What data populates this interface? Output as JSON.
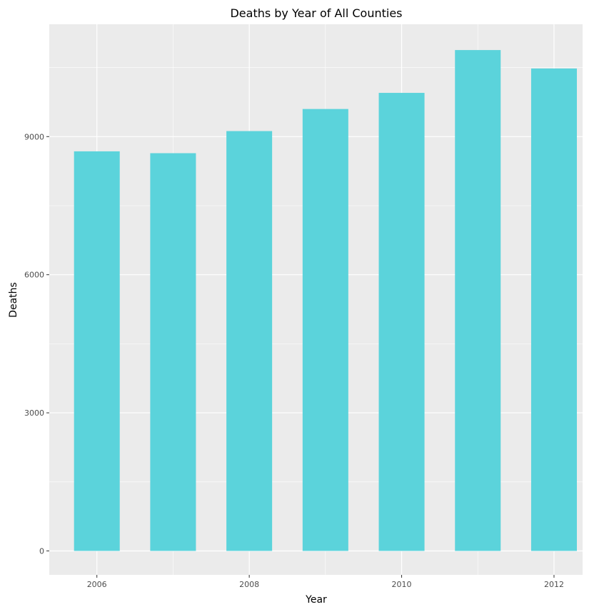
{
  "chart_data": {
    "type": "bar",
    "title": "Deaths by Year of All Counties",
    "xlabel": "Year",
    "ylabel": "Deaths",
    "x": [
      2006,
      2007,
      2008,
      2009,
      2010,
      2011,
      2012
    ],
    "values": [
      8680,
      8640,
      9120,
      9600,
      9950,
      10880,
      10480
    ],
    "x_ticks": [
      "2006",
      "2008",
      "2010",
      "2012"
    ],
    "y_ticks": [
      "0",
      "3000",
      "6000",
      "9000"
    ],
    "ylim": [
      -520,
      11440
    ],
    "grid": true,
    "colors": {
      "bar": "#5bd3db",
      "panel": "#ebebeb",
      "grid": "#ffffff",
      "tick_text": "#4d4d4d"
    }
  }
}
